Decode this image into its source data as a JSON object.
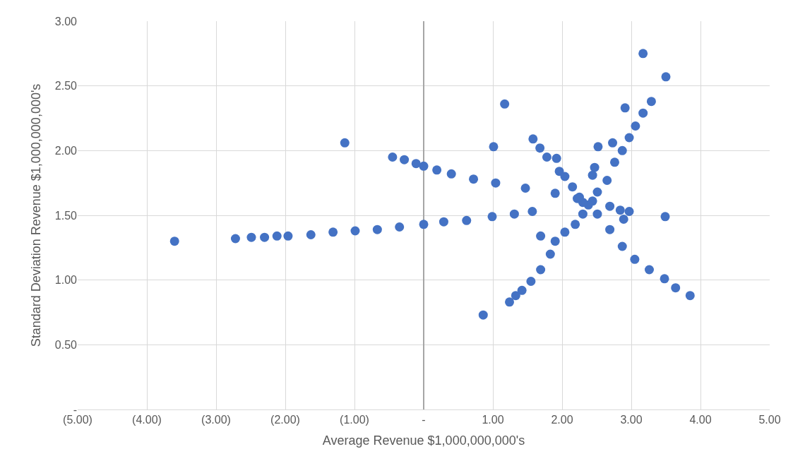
{
  "chart_data": {
    "type": "scatter",
    "xlabel": "Average Revenue $1,000,000,000's",
    "ylabel": "Standard Deviation Revenue $1,000,000,000's",
    "xlim": [
      -5,
      5
    ],
    "ylim": [
      0,
      3
    ],
    "xticks": [
      {
        "value": -5,
        "label": "(5.00)"
      },
      {
        "value": -4,
        "label": "(4.00)"
      },
      {
        "value": -3,
        "label": "(3.00)"
      },
      {
        "value": -2,
        "label": "(2.00)"
      },
      {
        "value": -1,
        "label": "(1.00)"
      },
      {
        "value": 0,
        "label": "-"
      },
      {
        "value": 1,
        "label": "1.00"
      },
      {
        "value": 2,
        "label": "2.00"
      },
      {
        "value": 3,
        "label": "3.00"
      },
      {
        "value": 4,
        "label": "4.00"
      },
      {
        "value": 5,
        "label": "5.00"
      }
    ],
    "yticks": [
      {
        "value": 0,
        "label": "-"
      },
      {
        "value": 0.5,
        "label": "0.50"
      },
      {
        "value": 1,
        "label": "1.00"
      },
      {
        "value": 1.5,
        "label": "1.50"
      },
      {
        "value": 2,
        "label": "2.00"
      },
      {
        "value": 2.5,
        "label": "2.50"
      },
      {
        "value": 3,
        "label": "3.00"
      }
    ],
    "grid": true,
    "marker": "circle",
    "legend": false,
    "series": [
      {
        "color": "#4472c4",
        "x": [
          -3.6,
          -2.72,
          -2.49,
          -2.3,
          -2.12,
          -1.96,
          -1.63,
          -1.31,
          -0.99,
          -0.67,
          -0.35,
          0,
          0.29,
          0.62,
          0.99,
          1.31,
          -0.45,
          -0.28,
          -0.11,
          0,
          0.19,
          0.4,
          0.72,
          1.04,
          1.47,
          1.9,
          2.22,
          2.44,
          2.38,
          2.3,
          -1.14,
          1.01,
          1.17,
          0.86,
          1.57,
          1.69,
          1.24,
          1.33,
          1.42,
          1.55,
          1.69,
          1.83,
          1.9,
          2.04,
          2.19,
          2.3,
          2.51,
          2.65,
          2.76,
          2.87,
          2.97,
          3.06,
          3.17,
          3.29,
          3.5,
          3.17,
          2.91,
          2.52,
          2.73,
          2.47,
          2.44,
          1.58,
          1.68,
          1.78,
          1.92,
          1.96,
          2.04,
          2.15,
          2.25,
          2.51,
          2.69,
          2.87,
          3.05,
          3.26,
          3.48,
          3.64,
          3.85,
          2.69,
          2.84,
          2.89,
          2.97,
          3.49
        ],
        "values": [
          1.3,
          1.32,
          1.33,
          1.33,
          1.34,
          1.34,
          1.35,
          1.37,
          1.38,
          1.39,
          1.41,
          1.43,
          1.45,
          1.46,
          1.49,
          1.51,
          1.95,
          1.93,
          1.9,
          1.88,
          1.85,
          1.82,
          1.78,
          1.75,
          1.71,
          1.67,
          1.63,
          1.61,
          1.58,
          1.6,
          2.06,
          2.03,
          2.36,
          0.73,
          1.53,
          1.34,
          0.83,
          0.88,
          0.92,
          0.99,
          1.08,
          1.2,
          1.3,
          1.37,
          1.43,
          1.51,
          1.68,
          1.77,
          1.91,
          2.0,
          2.1,
          2.19,
          2.29,
          2.38,
          2.57,
          2.75,
          2.33,
          2.03,
          2.06,
          1.87,
          1.81,
          2.09,
          2.02,
          1.95,
          1.94,
          1.84,
          1.8,
          1.72,
          1.64,
          1.51,
          1.39,
          1.26,
          1.16,
          1.08,
          1.01,
          0.94,
          0.88,
          1.57,
          1.54,
          1.47,
          1.53,
          1.49
        ]
      }
    ]
  }
}
